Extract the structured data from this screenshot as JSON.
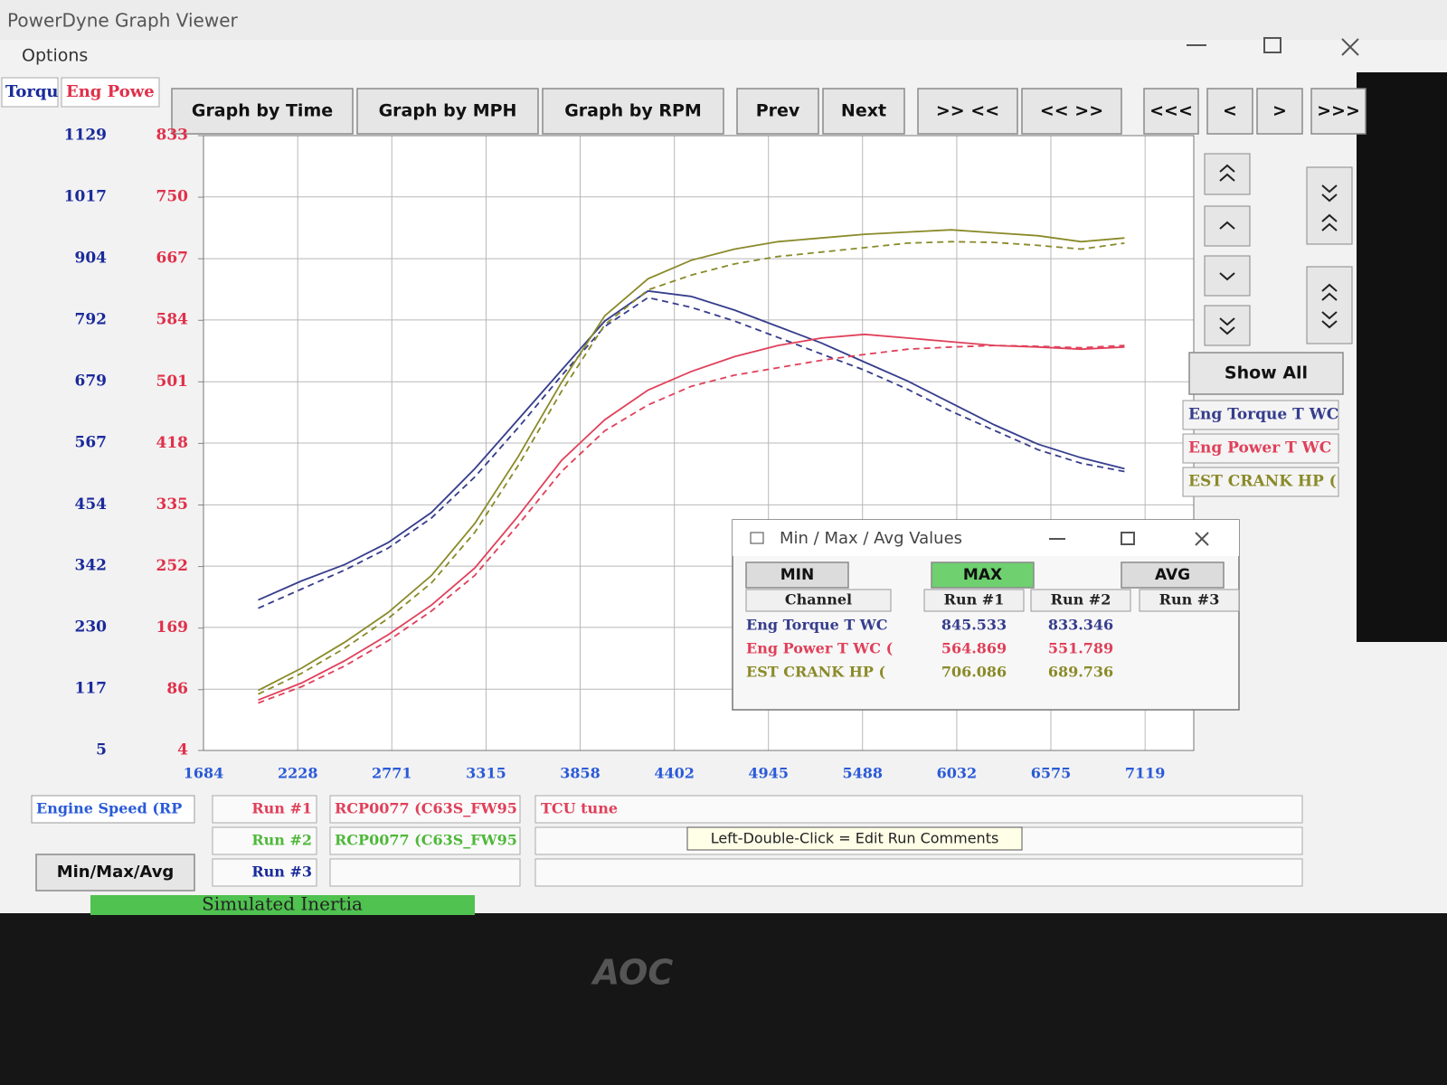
{
  "window": {
    "title": "PowerDyne Graph Viewer",
    "menu": [
      "Options"
    ]
  },
  "toolbar": [
    "Graph by Time",
    "Graph by MPH",
    "Graph by RPM",
    "Prev",
    "Next",
    ">> <<",
    "<< >>",
    "<<<",
    "<",
    ">",
    ">>>"
  ],
  "show_all": "Show All",
  "chart_data": {
    "type": "line",
    "y_label": "Torqu",
    "y2_label": "Eng Powe",
    "x_label": "Engine Speed (RP",
    "x": [
      2000,
      2250,
      2500,
      2750,
      3000,
      3250,
      3500,
      3750,
      4000,
      4250,
      4500,
      4750,
      5000,
      5250,
      5500,
      5750,
      6000,
      6250,
      6500,
      6750,
      7000
    ],
    "xlim": [
      1684,
      7400
    ],
    "xticks": [
      1684,
      2228,
      2771,
      3315,
      3858,
      4402,
      4945,
      5488,
      6032,
      6575,
      7119
    ],
    "ylim": [
      5,
      1129
    ],
    "yticks": [
      5,
      117,
      230,
      342,
      454,
      567,
      679,
      792,
      904,
      1017,
      1129
    ],
    "y2lim": [
      4,
      833
    ],
    "y2ticks": [
      4,
      86,
      169,
      252,
      335,
      418,
      501,
      584,
      667,
      750,
      833
    ],
    "grid": true,
    "series": [
      {
        "name": "Eng Torque T WC",
        "color": "#363d8c",
        "dashed": false,
        "values": [
          280,
          315,
          345,
          385,
          440,
          520,
          610,
          700,
          790,
          845,
          835,
          810,
          780,
          750,
          715,
          680,
          640,
          600,
          565,
          540,
          520
        ]
      },
      {
        "name": "Eng Torque T WC",
        "color": "#363d8c",
        "dashed": true,
        "values": [
          265,
          300,
          335,
          375,
          430,
          505,
          595,
          690,
          780,
          833,
          815,
          790,
          760,
          730,
          700,
          665,
          625,
          590,
          555,
          530,
          515
        ]
      },
      {
        "name": "Eng Power T WC",
        "color": "#e0405a",
        "dashed": false,
        "axis": "y2",
        "values": [
          72,
          95,
          125,
          160,
          200,
          250,
          320,
          395,
          450,
          490,
          515,
          535,
          550,
          560,
          565,
          560,
          555,
          550,
          548,
          545,
          548
        ]
      },
      {
        "name": "Eng Power T WC",
        "color": "#e0405a",
        "dashed": true,
        "axis": "y2",
        "values": [
          68,
          90,
          118,
          152,
          192,
          240,
          308,
          380,
          435,
          470,
          495,
          510,
          520,
          530,
          538,
          545,
          548,
          550,
          549,
          547,
          550
        ]
      },
      {
        "name": "EST CRANK HP (",
        "color": "#8a8a2a",
        "dashed": false,
        "axis": "y2",
        "values": [
          85,
          115,
          150,
          190,
          240,
          310,
          400,
          500,
          590,
          640,
          665,
          680,
          690,
          695,
          700,
          703,
          706,
          702,
          698,
          690,
          695
        ]
      },
      {
        "name": "EST CRANK HP (",
        "color": "#8a8a2a",
        "dashed": true,
        "axis": "y2",
        "values": [
          80,
          108,
          142,
          182,
          230,
          298,
          388,
          488,
          578,
          625,
          645,
          660,
          670,
          676,
          682,
          688,
          690,
          689,
          685,
          680,
          688
        ]
      }
    ]
  },
  "runs": [
    {
      "label": "Run #1",
      "file": "RCP0077 (C63S_FW95",
      "comment": "TCU tune"
    },
    {
      "label": "Run #2",
      "file": "RCP0077 (C63S_FW95"
    },
    {
      "label": "Run #3"
    }
  ],
  "min_max_button": "Min/Max/Avg",
  "tooltip": "Left-Double-Click = Edit Run Comments",
  "dialog": {
    "title": "Min / Max / Avg Values",
    "tabs": [
      "MIN",
      "MAX",
      "AVG"
    ],
    "columns": [
      "Channel",
      "Run #1",
      "Run #2",
      "Run #3"
    ],
    "rows": [
      [
        "Eng Torque T WC",
        "845.533",
        "833.346"
      ],
      [
        "Eng Power T WC (",
        "564.869",
        "551.789"
      ],
      [
        "EST CRANK HP (",
        "706.086",
        "689.736"
      ]
    ]
  },
  "footer": {
    "status": "Simulated Inertia",
    "brand": "AOC"
  }
}
